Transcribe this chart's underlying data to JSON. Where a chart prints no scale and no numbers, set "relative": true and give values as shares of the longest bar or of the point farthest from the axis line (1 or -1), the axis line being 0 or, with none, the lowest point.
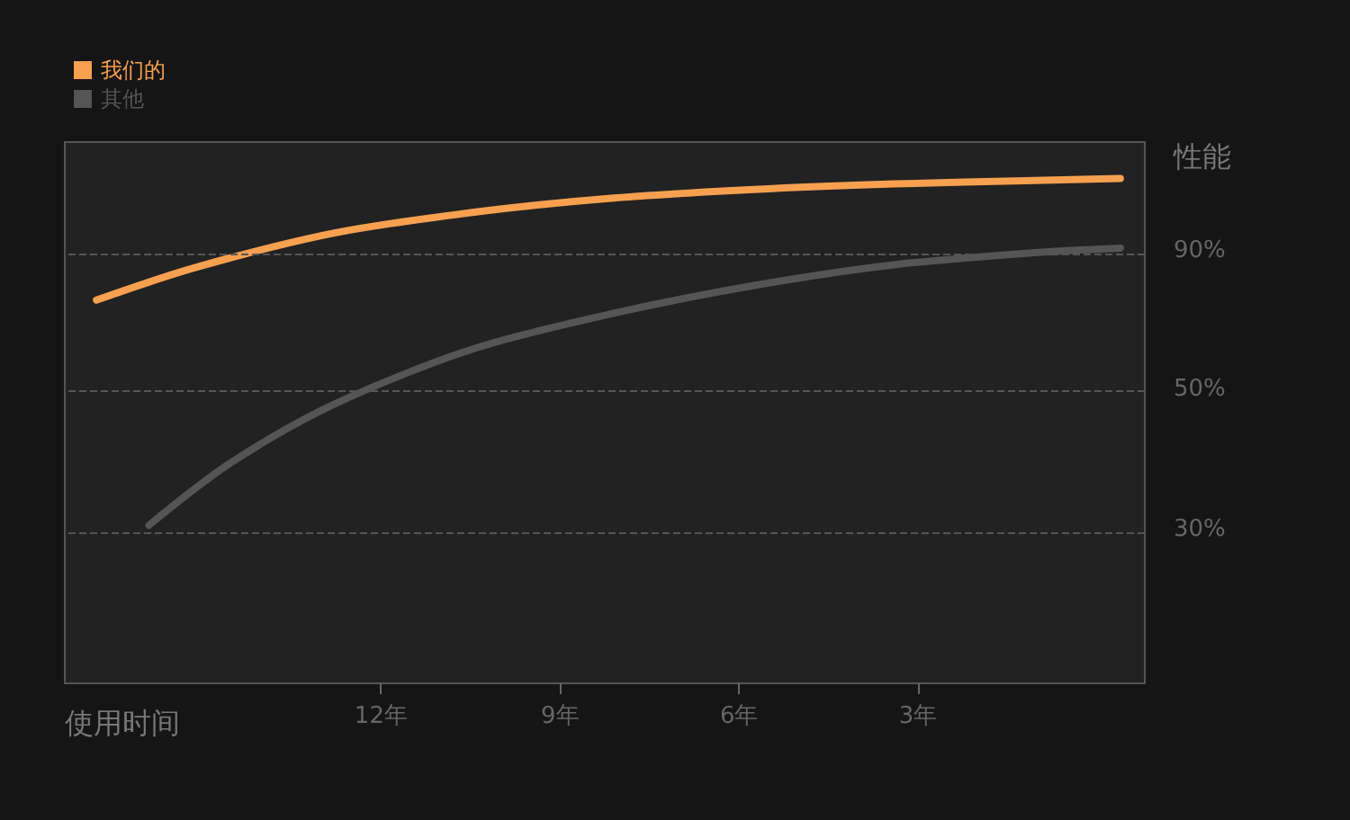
{
  "chart_data": {
    "type": "line",
    "xlabel": "使用时间",
    "ylabel": "性能",
    "relative": true,
    "xlim": [
      17.3,
      -0.8
    ],
    "xticks": [
      {
        "value": 12,
        "label": "12年"
      },
      {
        "value": 9,
        "label": "9年"
      },
      {
        "value": 6,
        "label": "6年"
      },
      {
        "value": 3,
        "label": "3年"
      }
    ],
    "series": [
      {
        "name": "我们的",
        "color": "#f7a050",
        "x": [
          16.77,
          15.13,
          12.78,
          10.44,
          8.1,
          5.75,
          3.4,
          1.05,
          -0.39
        ],
        "values": [
          0.759,
          0.823,
          0.892,
          0.933,
          0.961,
          0.978,
          0.989,
          0.996,
          1
        ]
      },
      {
        "name": "其他",
        "color": "#555555",
        "x": [
          15.89,
          14.54,
          12.78,
          10.44,
          8.1,
          5.75,
          3.4,
          1.05,
          -0.39
        ],
        "values": [
          0.313,
          0.435,
          0.553,
          0.663,
          0.733,
          0.788,
          0.829,
          0.853,
          0.862
        ]
      }
    ],
    "ref_lines": [
      {
        "axis": "y",
        "value": 0.851,
        "color": "#555555",
        "line_style": "dashed"
      },
      {
        "axis": "y",
        "value": 0.577,
        "color": "#555555",
        "line_style": "dashed"
      },
      {
        "axis": "y",
        "value": 0.299,
        "color": "#555555",
        "line_style": "dashed"
      }
    ],
    "annotations": [
      "90%",
      "50%",
      "30%"
    ],
    "legend": "top left",
    "grid": false,
    "marker": "none",
    "line_style": "solid"
  }
}
